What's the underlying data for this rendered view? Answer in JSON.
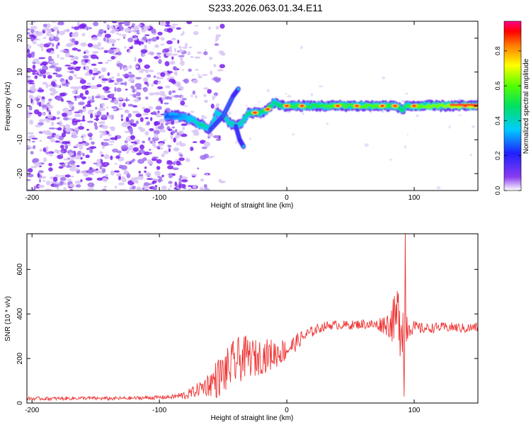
{
  "title": "S233.2026.063.01.34.E11",
  "colors": {
    "snr_line": "#ee3333",
    "axis": "#000000",
    "noise_speckle": "#8a3cf0"
  },
  "chart_data": [
    {
      "type": "heatmap",
      "name": "spectrogram",
      "xlabel": "Height of straight line (km)",
      "ylabel": "Frequency (Hz)",
      "xlim": [
        -204,
        150
      ],
      "ylim": [
        -25,
        25
      ],
      "xticks": [
        -200,
        -100,
        0,
        100
      ],
      "xtick_labels": [
        "-200",
        "-100",
        "0",
        "100"
      ],
      "yticks": [
        -20,
        -10,
        0,
        10,
        20
      ],
      "ytick_labels": [
        "-20",
        "-10",
        "0",
        "10",
        "20"
      ],
      "colorbar": {
        "label": "Normalized spectral amplitude",
        "range": [
          0,
          0.97
        ],
        "ticks": [
          0.0,
          0.2,
          0.4,
          0.6,
          0.8
        ],
        "tick_labels": [
          "0.0",
          "0.2",
          "0.4",
          "0.6",
          "0.8"
        ]
      },
      "ridge": [
        {
          "x": -95,
          "f": -3,
          "a": 0.35
        },
        {
          "x": -85,
          "f": -3,
          "a": 0.4
        },
        {
          "x": -75,
          "f": -4,
          "a": 0.5
        },
        {
          "x": -70,
          "f": -5,
          "a": 0.55
        },
        {
          "x": -65,
          "f": -6,
          "a": 0.6
        },
        {
          "x": -60,
          "f": -7,
          "a": 0.5
        },
        {
          "x": -55,
          "f": -2,
          "a": 0.5
        },
        {
          "x": -50,
          "f": -3,
          "a": 0.55
        },
        {
          "x": -45,
          "f": -5,
          "a": 0.55
        },
        {
          "x": -40,
          "f": -6,
          "a": 0.6
        },
        {
          "x": -35,
          "f": -5,
          "a": 0.55
        },
        {
          "x": -30,
          "f": -2,
          "a": 0.6
        },
        {
          "x": -25,
          "f": -2,
          "a": 0.7
        },
        {
          "x": -20,
          "f": -2,
          "a": 0.65
        },
        {
          "x": -15,
          "f": -1,
          "a": 0.75
        },
        {
          "x": -10,
          "f": 1,
          "a": 0.6
        },
        {
          "x": -5,
          "f": 0,
          "a": 0.65
        },
        {
          "x": 0,
          "f": 0,
          "a": 0.7
        },
        {
          "x": 10,
          "f": 0,
          "a": 0.75
        },
        {
          "x": 20,
          "f": 0,
          "a": 0.7
        },
        {
          "x": 30,
          "f": 0,
          "a": 0.75
        },
        {
          "x": 40,
          "f": 0,
          "a": 0.8
        },
        {
          "x": 50,
          "f": 0,
          "a": 0.75
        },
        {
          "x": 60,
          "f": 0,
          "a": 0.8
        },
        {
          "x": 70,
          "f": 0,
          "a": 0.8
        },
        {
          "x": 80,
          "f": 0,
          "a": 0.75
        },
        {
          "x": 85,
          "f": 0,
          "a": 0.7
        },
        {
          "x": 90,
          "f": -1,
          "a": 0.65
        },
        {
          "x": 95,
          "f": 0,
          "a": 0.75
        },
        {
          "x": 100,
          "f": 0,
          "a": 0.8
        },
        {
          "x": 110,
          "f": 0,
          "a": 0.85
        },
        {
          "x": 120,
          "f": 0,
          "a": 0.85
        },
        {
          "x": 130,
          "f": 0,
          "a": 0.9
        },
        {
          "x": 140,
          "f": 0,
          "a": 0.92
        },
        {
          "x": 150,
          "f": 0,
          "a": 0.95
        }
      ],
      "branches": [
        {
          "x": [
            -60,
            -50,
            -42,
            -38
          ],
          "f": [
            -7,
            -3,
            3,
            5
          ]
        },
        {
          "x": [
            -40,
            -37,
            -34
          ],
          "f": [
            -6,
            -10,
            -12
          ]
        }
      ],
      "hot_spots": [
        {
          "x": -25,
          "f": -2
        },
        {
          "x": -15,
          "f": -1
        },
        {
          "x": 0,
          "f": 0
        },
        {
          "x": 12,
          "f": 0
        },
        {
          "x": 40,
          "f": 0
        },
        {
          "x": 55,
          "f": 0
        },
        {
          "x": 75,
          "f": 0
        },
        {
          "x": 85,
          "f": 0
        },
        {
          "x": 100,
          "f": 0
        },
        {
          "x": 140,
          "f": 0
        },
        {
          "x": 148,
          "f": 0
        }
      ],
      "noise_region": {
        "x": [
          -204,
          -80
        ],
        "f": [
          -25,
          25
        ]
      }
    },
    {
      "type": "line",
      "name": "snr",
      "xlabel": "Height of straight line (km)",
      "ylabel": "SNR (10 * v/v)",
      "xlim": [
        -204,
        150
      ],
      "ylim": [
        0,
        760
      ],
      "xticks": [
        -200,
        -100,
        0,
        100
      ],
      "xtick_labels": [
        "-200",
        "-100",
        "0",
        "100"
      ],
      "yticks": [
        0,
        200,
        400,
        600
      ],
      "ytick_labels": [
        "0",
        "200",
        "400",
        "600"
      ],
      "series": [
        {
          "name": "SNR",
          "x": [
            -204,
            -180,
            -160,
            -140,
            -120,
            -100,
            -90,
            -80,
            -75,
            -70,
            -65,
            -60,
            -55,
            -50,
            -45,
            -40,
            -35,
            -30,
            -25,
            -20,
            -15,
            -10,
            -5,
            0,
            5,
            10,
            15,
            20,
            25,
            30,
            35,
            40,
            50,
            60,
            70,
            75,
            80,
            85,
            88,
            90,
            92,
            94,
            96,
            100,
            105,
            110,
            120,
            130,
            140,
            150
          ],
          "y": [
            20,
            20,
            22,
            20,
            22,
            25,
            28,
            35,
            45,
            60,
            75,
            90,
            110,
            130,
            160,
            185,
            200,
            210,
            200,
            210,
            215,
            220,
            230,
            240,
            260,
            285,
            305,
            320,
            335,
            345,
            350,
            350,
            350,
            355,
            350,
            355,
            355,
            370,
            400,
            380,
            360,
            350,
            345,
            340,
            335,
            335,
            340,
            340,
            335,
            340
          ],
          "noise": [
            8,
            8,
            8,
            8,
            8,
            9,
            10,
            20,
            25,
            30,
            45,
            60,
            90,
            95,
            100,
            110,
            100,
            90,
            85,
            80,
            75,
            70,
            60,
            50,
            40,
            35,
            30,
            25,
            22,
            20,
            20,
            20,
            20,
            22,
            25,
            40,
            60,
            120,
            170,
            200,
            170,
            100,
            50,
            30,
            25,
            22,
            22,
            22,
            22,
            22
          ]
        }
      ],
      "annotations": [
        {
          "x": 93,
          "y": 762,
          "label": "peak"
        },
        {
          "x": 92,
          "y": 30,
          "label": "trough"
        }
      ]
    }
  ]
}
